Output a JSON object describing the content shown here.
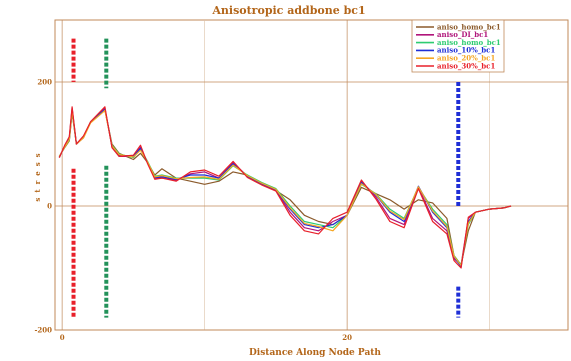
{
  "chart_data": {
    "type": "line",
    "title": "Anisotropic addbone bc1",
    "xlabel": "Distance Along Node Path",
    "ylabel": "stress",
    "xlim": [
      -0.5,
      35.5
    ],
    "ylim": [
      -200,
      300
    ],
    "xticks": [
      0,
      20
    ],
    "yticks": [
      200,
      0,
      -200
    ],
    "grid": true,
    "legend_position": "top-right",
    "series": [
      {
        "name": "aniso_homo_bc1",
        "color": "#8b5a2b",
        "x": [
          -0.2,
          0.2,
          0.5,
          0.7,
          1.0,
          1.5,
          2.0,
          3.0,
          3.5,
          4.0,
          5.0,
          5.5,
          6.0,
          6.5,
          7.0,
          8.0,
          9.0,
          10.0,
          11.0,
          12.0,
          13.0,
          14.0,
          15.0,
          16.0,
          17.0,
          18.0,
          19.0,
          20.0,
          21.0,
          22.0,
          23.0,
          24.0,
          25.0,
          26.0,
          27.0,
          27.5,
          28.0,
          28.5,
          29.0,
          30.0,
          31.0,
          31.5
        ],
        "y": [
          80,
          95,
          105,
          150,
          100,
          110,
          135,
          155,
          100,
          85,
          75,
          85,
          70,
          50,
          60,
          45,
          40,
          35,
          40,
          55,
          50,
          35,
          25,
          10,
          -15,
          -25,
          -30,
          -15,
          30,
          20,
          10,
          -5,
          10,
          5,
          -20,
          -80,
          -95,
          -40,
          -10,
          -5,
          -3,
          0
        ]
      },
      {
        "name": "aniso_DI_bc1",
        "color": "#b0157a",
        "x": [
          -0.2,
          0.2,
          0.5,
          0.7,
          1.0,
          1.5,
          2.0,
          3.0,
          3.5,
          4.0,
          5.0,
          5.5,
          6.0,
          6.5,
          7.0,
          8.0,
          9.0,
          10.0,
          11.0,
          12.0,
          13.0,
          14.0,
          15.0,
          16.0,
          17.0,
          18.0,
          19.0,
          20.0,
          21.0,
          22.0,
          23.0,
          24.0,
          25.0,
          26.0,
          27.0,
          27.5,
          28.0,
          28.5,
          29.0,
          30.0,
          31.0,
          31.5
        ],
        "y": [
          78,
          98,
          110,
          158,
          100,
          112,
          135,
          158,
          95,
          80,
          80,
          95,
          70,
          45,
          45,
          42,
          52,
          55,
          45,
          70,
          48,
          35,
          25,
          -10,
          -35,
          -40,
          -25,
          -15,
          40,
          15,
          -20,
          -30,
          30,
          -20,
          -40,
          -85,
          -95,
          -20,
          -10,
          -5,
          -3,
          0
        ]
      },
      {
        "name": "aniso_homo_bc1",
        "color": "#2ecc71",
        "x": [
          -0.2,
          0.2,
          0.5,
          0.7,
          1.0,
          1.5,
          2.0,
          3.0,
          3.5,
          4.0,
          5.0,
          5.5,
          6.0,
          6.5,
          7.0,
          8.0,
          9.0,
          10.0,
          11.0,
          12.0,
          13.0,
          14.0,
          15.0,
          16.0,
          17.0,
          18.0,
          19.0,
          20.0,
          21.0,
          22.0,
          23.0,
          24.0,
          25.0,
          26.0,
          27.0,
          27.5,
          28.0,
          28.5,
          29.0,
          30.0,
          31.0,
          31.5
        ],
        "y": [
          80,
          96,
          106,
          152,
          100,
          111,
          136,
          155,
          98,
          84,
          78,
          92,
          72,
          48,
          50,
          45,
          45,
          45,
          42,
          65,
          50,
          38,
          28,
          0,
          -25,
          -30,
          -35,
          -15,
          35,
          20,
          -5,
          -20,
          30,
          -5,
          -30,
          -80,
          -95,
          -30,
          -10,
          -5,
          -3,
          0
        ]
      },
      {
        "name": "aniso_10%_bc1",
        "color": "#1f2fd6",
        "x": [
          -0.2,
          0.2,
          0.5,
          0.7,
          1.0,
          1.5,
          2.0,
          3.0,
          3.5,
          4.0,
          5.0,
          5.5,
          6.0,
          6.5,
          7.0,
          8.0,
          9.0,
          10.0,
          11.0,
          12.0,
          13.0,
          14.0,
          15.0,
          16.0,
          17.0,
          18.0,
          19.0,
          20.0,
          21.0,
          22.0,
          23.0,
          24.0,
          25.0,
          26.0,
          27.0,
          27.5,
          28.0,
          28.5,
          29.0,
          30.0,
          31.0,
          31.5
        ],
        "y": [
          79,
          97,
          108,
          155,
          100,
          112,
          135,
          156,
          96,
          82,
          80,
          93,
          70,
          46,
          47,
          43,
          50,
          50,
          45,
          68,
          48,
          36,
          26,
          -5,
          -30,
          -35,
          -30,
          -15,
          38,
          18,
          -10,
          -25,
          32,
          -10,
          -35,
          -82,
          -98,
          -25,
          -10,
          -5,
          -3,
          0
        ]
      },
      {
        "name": "aniso_20%_bc1",
        "color": "#f5a623",
        "x": [
          -0.2,
          0.2,
          0.5,
          0.7,
          1.0,
          1.5,
          2.0,
          3.0,
          3.5,
          4.0,
          5.0,
          5.5,
          6.0,
          6.5,
          7.0,
          8.0,
          9.0,
          10.0,
          11.0,
          12.0,
          13.0,
          14.0,
          15.0,
          16.0,
          17.0,
          18.0,
          19.0,
          20.0,
          21.0,
          22.0,
          23.0,
          24.0,
          25.0,
          26.0,
          27.0,
          27.5,
          28.0,
          28.5,
          29.0,
          30.0,
          31.0,
          31.5
        ],
        "y": [
          80,
          96,
          107,
          153,
          100,
          110,
          134,
          154,
          97,
          83,
          79,
          90,
          71,
          47,
          49,
          44,
          46,
          47,
          43,
          66,
          49,
          37,
          27,
          -3,
          -28,
          -33,
          -40,
          -15,
          36,
          19,
          -8,
          -22,
          31,
          -8,
          -33,
          -81,
          -96,
          -28,
          -10,
          -5,
          -3,
          0
        ]
      },
      {
        "name": "aniso_30%_bc1",
        "color": "#e8202a",
        "x": [
          -0.2,
          0.2,
          0.5,
          0.7,
          1.0,
          1.5,
          2.0,
          3.0,
          3.5,
          4.0,
          5.0,
          5.5,
          6.0,
          6.5,
          7.0,
          8.0,
          9.0,
          10.0,
          11.0,
          12.0,
          13.0,
          14.0,
          15.0,
          16.0,
          17.0,
          18.0,
          19.0,
          20.0,
          21.0,
          22.0,
          23.0,
          24.0,
          25.0,
          26.0,
          27.0,
          27.5,
          28.0,
          28.5,
          29.0,
          30.0,
          31.0,
          31.5
        ],
        "y": [
          78,
          99,
          112,
          160,
          100,
          113,
          136,
          160,
          94,
          80,
          82,
          98,
          68,
          43,
          45,
          40,
          55,
          58,
          48,
          72,
          46,
          34,
          24,
          -15,
          -40,
          -45,
          -20,
          -10,
          42,
          12,
          -25,
          -35,
          28,
          -25,
          -45,
          -88,
          -100,
          -18,
          -10,
          -5,
          -3,
          0
        ]
      }
    ],
    "markers": [
      {
        "color": "#e8202a",
        "x": 0.8,
        "segments": [
          [
            270,
            200
          ],
          [
            60,
            -180
          ]
        ]
      },
      {
        "color": "#23925a",
        "x": 3.1,
        "segments": [
          [
            270,
            190
          ],
          [
            65,
            -180
          ]
        ]
      },
      {
        "color": "#1f2fd6",
        "x": 27.8,
        "segments": [
          [
            200,
            0
          ],
          [
            -130,
            -180
          ]
        ]
      }
    ]
  }
}
